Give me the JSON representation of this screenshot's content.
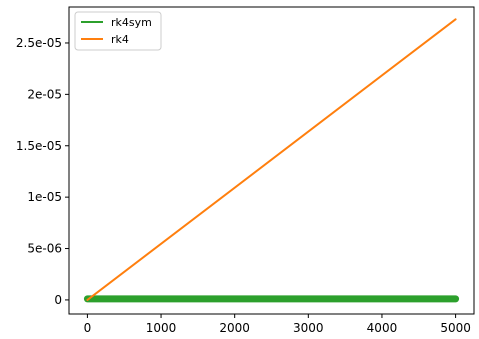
{
  "chart_data": {
    "type": "line",
    "title": "",
    "xlabel": "",
    "ylabel": "",
    "xlim": [
      -250,
      5250
    ],
    "ylim": [
      -1.37e-06,
      2.85e-05
    ],
    "xticks": [
      0,
      1000,
      2000,
      3000,
      4000,
      5000
    ],
    "xtick_labels": [
      "0",
      "1000",
      "2000",
      "3000",
      "4000",
      "5000"
    ],
    "yticks": [
      0,
      5e-06,
      1e-05,
      1.5e-05,
      2e-05,
      2.5e-05
    ],
    "ytick_labels": [
      "0",
      "5e-06",
      "1e-05",
      "1.5e-05",
      "2e-05",
      "2.5e-05"
    ],
    "grid": false,
    "legend_position": "top-left",
    "series": [
      {
        "name": "rk4sym",
        "color": "#2ca02c",
        "style": "thick-band",
        "x": [
          0,
          5000
        ],
        "y": [
          1e-07,
          1e-07
        ]
      },
      {
        "name": "rk4",
        "color": "#ff7f0e",
        "style": "line",
        "x": [
          0,
          5000
        ],
        "y": [
          0,
          2.73e-05
        ]
      }
    ]
  }
}
